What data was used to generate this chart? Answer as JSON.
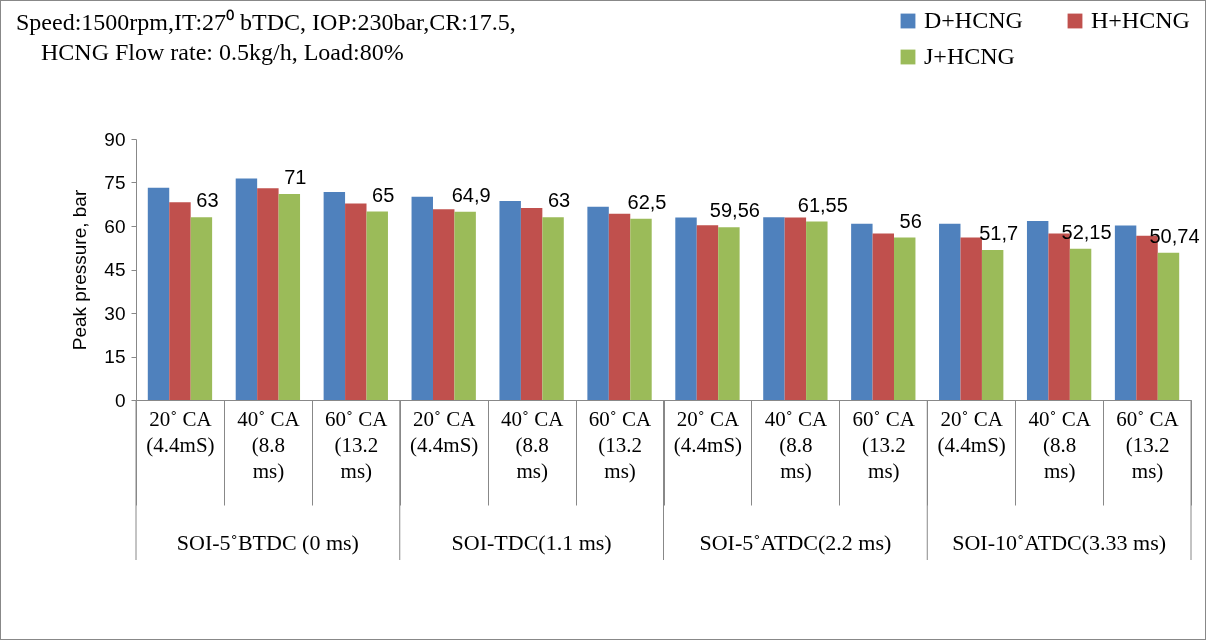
{
  "chart_data": {
    "type": "bar",
    "title": "Speed:1500rpm,IT:27⁰ bTDC, IOP:230bar,CR:17.5, HCNG Flow rate: 0.5kg/h, Load:80%",
    "ylabel": "Peak pressure, bar",
    "categories": [
      "20˚ CA (4.4mS)",
      "40˚ CA (8.8 ms)",
      "60˚ CA (13.2 ms)",
      "20˚ CA (4.4mS)",
      "40˚ CA (8.8 ms)",
      "60˚ CA (13.2 ms)",
      "20˚ CA (4.4mS)",
      "40˚ CA (8.8 ms)",
      "60˚ CA (13.2 ms)",
      "20˚ CA (4.4mS)",
      "40˚ CA (8.8 ms)",
      "60˚ CA (13.2 ms)"
    ],
    "annotations": [
      "SOI-5˚BTDC (0 ms)",
      "SOI-TDC(1.1 ms)",
      "SOI-5˚ATDC(2.2 ms)",
      "SOI-10˚ATDC(3.33 ms)"
    ],
    "series": [
      {
        "name": "D+HCNG",
        "color": "#4f81bd",
        "values": [
          73.2,
          76.4,
          71.7,
          70.1,
          68.6,
          66.6,
          62.9,
          63.0,
          60.8,
          60.8,
          61.7,
          60.2
        ]
      },
      {
        "name": "H+HCNG",
        "color": "#c0504d",
        "values": [
          68.2,
          73.0,
          67.8,
          65.8,
          66.2,
          64.2,
          60.3,
          62.9,
          57.4,
          56.0,
          57.4,
          56.6
        ]
      },
      {
        "name": "J+HCNG",
        "color": "#9bbb59",
        "values": [
          63,
          71,
          65,
          64.9,
          63,
          62.5,
          59.56,
          61.55,
          56,
          51.7,
          52.15,
          50.74
        ],
        "value_labels": [
          "63",
          "71",
          "65",
          "64,9",
          "63",
          "62,5",
          "59,56",
          "61,55",
          "56",
          "51,7",
          "52,15",
          "50,74"
        ]
      }
    ],
    "ylim": [
      0,
      90
    ],
    "yticks": [
      0,
      15,
      30,
      45,
      60,
      75,
      90
    ],
    "grid": false,
    "legend": "top right"
  }
}
